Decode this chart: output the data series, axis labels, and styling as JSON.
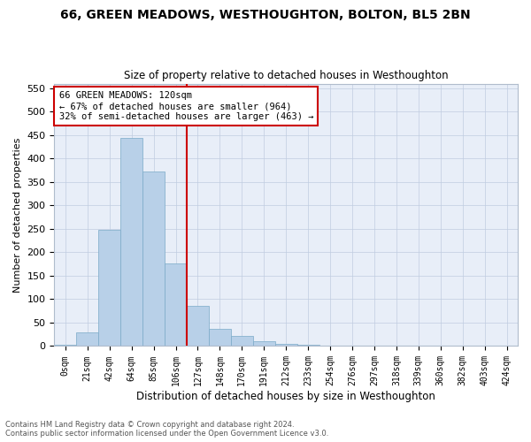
{
  "title": "66, GREEN MEADOWS, WESTHOUGHTON, BOLTON, BL5 2BN",
  "subtitle": "Size of property relative to detached houses in Westhoughton",
  "xlabel": "Distribution of detached houses by size in Westhoughton",
  "ylabel": "Number of detached properties",
  "footnote1": "Contains HM Land Registry data © Crown copyright and database right 2024.",
  "footnote2": "Contains public sector information licensed under the Open Government Licence v3.0.",
  "bar_labels": [
    "0sqm",
    "21sqm",
    "42sqm",
    "64sqm",
    "85sqm",
    "106sqm",
    "127sqm",
    "148sqm",
    "170sqm",
    "191sqm",
    "212sqm",
    "233sqm",
    "254sqm",
    "276sqm",
    "297sqm",
    "318sqm",
    "339sqm",
    "360sqm",
    "382sqm",
    "403sqm",
    "424sqm"
  ],
  "bar_values": [
    2,
    30,
    248,
    445,
    372,
    176,
    85,
    37,
    22,
    11,
    5,
    3,
    1,
    0,
    0,
    1,
    0,
    0,
    1,
    0,
    0
  ],
  "bar_color": "#b8d0e8",
  "bar_edge_color": "#7aaac8",
  "ylim": [
    0,
    560
  ],
  "yticks": [
    0,
    50,
    100,
    150,
    200,
    250,
    300,
    350,
    400,
    450,
    500,
    550
  ],
  "property_label": "66 GREEN MEADOWS: 120sqm",
  "annotation_line1": "← 67% of detached houses are smaller (964)",
  "annotation_line2": "32% of semi-detached houses are larger (463) →",
  "annotation_box_color": "#ffffff",
  "annotation_box_edge_color": "#cc0000",
  "vline_color": "#cc0000",
  "background_color": "#e8eef8",
  "vline_index": 6.0
}
